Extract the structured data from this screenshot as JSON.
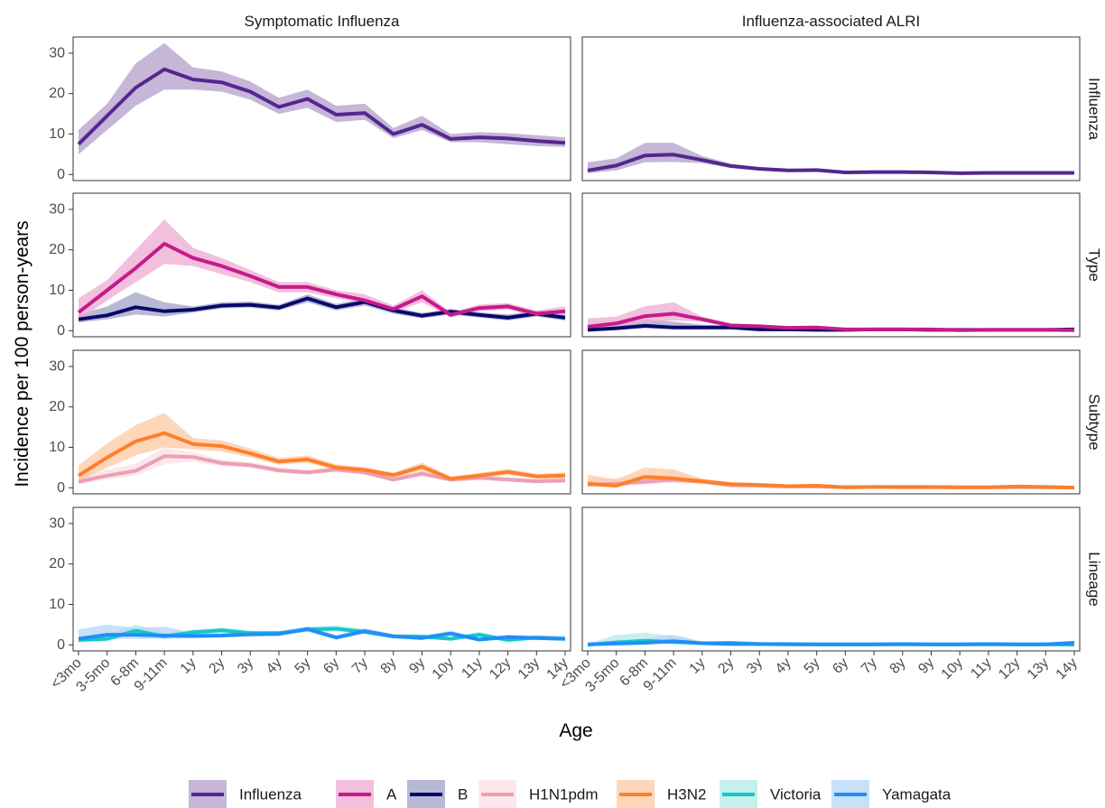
{
  "chart_data": {
    "type": "line",
    "xlabel": "Age",
    "ylabel": "Incidence per 100 person-years",
    "x_ticks": [
      "<3mo",
      "3-5mo",
      "6-8m",
      "9-11m",
      "1y",
      "2y",
      "3y",
      "4y",
      "5y",
      "6y",
      "7y",
      "8y",
      "9y",
      "10y",
      "11y",
      "12y",
      "13y",
      "14y"
    ],
    "y_ticks": [
      0,
      10,
      20,
      30
    ],
    "ylim": [
      -1.5,
      34
    ],
    "grid": false,
    "legend_position": "bottom",
    "columns": [
      "Symptomatic Influenza",
      "Influenza-associated ALRI"
    ],
    "rows": [
      "Influenza",
      "Type",
      "Subtype",
      "Lineage"
    ],
    "legend": [
      {
        "key": "Influenza",
        "label": "Influenza",
        "color": "#54278f",
        "fill": "#b39dca"
      },
      {
        "key": "A",
        "label": "A",
        "color": "#c51b8a",
        "fill": "#eda9d1"
      },
      {
        "key": "B",
        "label": "B",
        "color": "#08086b",
        "fill": "#9fa2c9"
      },
      {
        "key": "H1N1pdm",
        "label": "H1N1pdm",
        "color": "#ec9fb3",
        "fill": "#fbe0e6"
      },
      {
        "key": "H3N2",
        "label": "H3N2",
        "color": "#fd7f2c",
        "fill": "#fdc8a3"
      },
      {
        "key": "Victoria",
        "label": "Victoria",
        "color": "#16c7c9",
        "fill": "#b0ece8"
      },
      {
        "key": "Yamagata",
        "label": "Yamagata",
        "color": "#1f8ff7",
        "fill": "#b5d5f7"
      }
    ],
    "panels": [
      {
        "row": "Influenza",
        "col": "Symptomatic Influenza",
        "series": [
          {
            "key": "Influenza",
            "values": [
              7.5,
              14.5,
              21.5,
              26,
              23.5,
              22.8,
              20.5,
              16.7,
              18.7,
              14.8,
              15.2,
              10,
              12.3,
              8.8,
              9.2,
              8.9,
              8.3,
              7.8
            ],
            "lower": [
              5,
              11,
              17,
              21,
              21,
              20.5,
              18.5,
              15,
              16.5,
              13,
              13.5,
              9,
              11,
              8,
              8,
              7.5,
              7,
              6.8
            ],
            "upper": [
              11,
              17.5,
              27.5,
              32.5,
              26.5,
              25.5,
              23,
              19,
              21,
              17,
              17.5,
              11.5,
              14.5,
              10,
              10.5,
              10.2,
              9.7,
              9.2
            ]
          }
        ]
      },
      {
        "row": "Influenza",
        "col": "Influenza-associated ALRI",
        "series": [
          {
            "key": "Influenza",
            "values": [
              1,
              2.2,
              4.7,
              4.9,
              3.6,
              2.1,
              1.4,
              1,
              1.1,
              0.5,
              0.6,
              0.6,
              0.5,
              0.3,
              0.4,
              0.4,
              0.4,
              0.4
            ],
            "lower": [
              0.3,
              1,
              3,
              3.1,
              2.8,
              1.6,
              1,
              0.7,
              0.8,
              0.3,
              0.4,
              0.4,
              0.3,
              0.2,
              0.2,
              0.2,
              0.2,
              0.2
            ],
            "upper": [
              3,
              4,
              7.8,
              7.8,
              4.6,
              2.7,
              1.8,
              1.4,
              1.5,
              0.8,
              0.9,
              0.9,
              0.8,
              0.5,
              0.6,
              0.6,
              0.6,
              0.6
            ]
          }
        ]
      },
      {
        "row": "Type",
        "col": "Symptomatic Influenza",
        "series": [
          {
            "key": "B",
            "values": [
              2.8,
              3.8,
              5.8,
              4.8,
              5.2,
              6.2,
              6.4,
              5.7,
              8,
              5.8,
              7.1,
              5,
              3.7,
              4.7,
              3.9,
              3.2,
              4.2,
              3.2
            ],
            "lower": [
              2,
              2.8,
              4,
              3.5,
              4.5,
              5.5,
              5.7,
              5,
              7,
              5,
              6.2,
              4.2,
              3,
              4,
              3.2,
              2.5,
              3.5,
              2.5
            ],
            "upper": [
              4,
              6,
              9.5,
              7,
              6,
              7,
              7.2,
              6.4,
              9,
              6.6,
              8,
              5.8,
              4.4,
              5.4,
              4.6,
              4,
              5,
              4
            ]
          },
          {
            "key": "A",
            "values": [
              4.5,
              10,
              15.5,
              21.5,
              18,
              16,
              13.5,
              10.8,
              10.8,
              9,
              7.5,
              5.3,
              8.5,
              3.9,
              5.6,
              6,
              4.2,
              4.8
            ],
            "lower": [
              2.5,
              7.5,
              12,
              16.5,
              16,
              14,
              12,
              9.5,
              9.5,
              8,
              6.8,
              4.5,
              7,
              3.3,
              4.8,
              5.2,
              3.5,
              4
            ],
            "upper": [
              8,
              12.5,
              20,
              27.5,
              20.5,
              18,
              15,
              12,
              12,
              10,
              9,
              6.2,
              10,
              4.5,
              6.5,
              6.8,
              5,
              6
            ]
          }
        ]
      },
      {
        "row": "Type",
        "col": "Influenza-associated ALRI",
        "series": [
          {
            "key": "B",
            "values": [
              0.2,
              0.6,
              1.2,
              0.8,
              0.8,
              0.8,
              0.3,
              0.3,
              0.2,
              0.2,
              0.3,
              0.3,
              0.2,
              0.2,
              0.2,
              0.2,
              0.2,
              0.3
            ],
            "lower": [
              0,
              0.2,
              0.6,
              0.4,
              0.4,
              0.5,
              0.1,
              0.1,
              0.05,
              0.05,
              0.1,
              0.1,
              0.05,
              0.05,
              0.05,
              0.05,
              0.05,
              0.1
            ],
            "upper": [
              0.8,
              1.5,
              2.8,
              2.2,
              1.5,
              1.2,
              0.6,
              0.6,
              0.4,
              0.4,
              0.5,
              0.5,
              0.4,
              0.4,
              0.4,
              0.4,
              0.4,
              0.6
            ]
          },
          {
            "key": "A",
            "values": [
              1,
              1.8,
              3.6,
              4.2,
              2.8,
              1.3,
              1.1,
              0.7,
              0.8,
              0.3,
              0.3,
              0.3,
              0.3,
              0.1,
              0.2,
              0.2,
              0.2,
              0.1
            ],
            "lower": [
              0.3,
              0.8,
              2,
              2.5,
              2.2,
              0.9,
              0.7,
              0.4,
              0.5,
              0.15,
              0.15,
              0.15,
              0.15,
              0.05,
              0.1,
              0.1,
              0.1,
              0.05
            ],
            "upper": [
              3,
              3.5,
              6,
              7,
              3.5,
              1.8,
              1.5,
              1,
              1.1,
              0.5,
              0.5,
              0.5,
              0.5,
              0.3,
              0.4,
              0.4,
              0.4,
              0.3
            ]
          }
        ]
      },
      {
        "row": "Subtype",
        "col": "Symptomatic Influenza",
        "series": [
          {
            "key": "H1N1pdm",
            "values": [
              1.5,
              3,
              4.2,
              7.8,
              7.6,
              6.1,
              5.6,
              4.3,
              3.8,
              4.5,
              3.8,
              2,
              3.5,
              2,
              2.5,
              2,
              1.6,
              1.8
            ],
            "lower": [
              0.8,
              2,
              3,
              5.8,
              6.5,
              5.3,
              4.9,
              3.7,
              3.2,
              3.9,
              3.2,
              1.5,
              2.8,
              1.5,
              1.9,
              1.5,
              1.1,
              1.2
            ],
            "upper": [
              2.5,
              4.5,
              6,
              10,
              8.8,
              7,
              6.4,
              5,
              4.5,
              5.2,
              4.5,
              2.6,
              4.3,
              2.6,
              3.2,
              2.6,
              2.2,
              2.5
            ]
          },
          {
            "key": "H3N2",
            "values": [
              3,
              7.5,
              11.5,
              13.5,
              10.8,
              10.3,
              8.5,
              6.5,
              7,
              5,
              4.4,
              3.1,
              5.2,
              2.2,
              3,
              3.9,
              2.8,
              3
            ],
            "lower": [
              1.5,
              5,
              8,
              10,
              9.5,
              9,
              7.5,
              5.7,
              6.2,
              4.3,
              3.8,
              2.5,
              4.3,
              1.7,
              2.4,
              3.2,
              2.2,
              2.3
            ],
            "upper": [
              5.5,
              11,
              15.5,
              18.5,
              12.3,
              11.7,
              9.7,
              7.4,
              8,
              5.8,
              5.1,
              3.8,
              6.2,
              2.8,
              3.7,
              4.7,
              3.5,
              3.8
            ]
          }
        ]
      },
      {
        "row": "Subtype",
        "col": "Influenza-associated ALRI",
        "series": [
          {
            "key": "H1N1pdm",
            "values": [
              0.8,
              1,
              1.5,
              2,
              1.5,
              0.6,
              0.5,
              0.3,
              0.3,
              0.1,
              0.2,
              0.1,
              0.1,
              0.1,
              0.1,
              0.1,
              0.1,
              0.05
            ],
            "lower": [
              0.2,
              0.4,
              0.8,
              1.2,
              1,
              0.3,
              0.25,
              0.1,
              0.1,
              0.03,
              0.05,
              0.03,
              0.03,
              0.03,
              0.03,
              0.03,
              0.03,
              0.01
            ],
            "upper": [
              2,
              2.5,
              3,
              3.5,
              2.2,
              1,
              0.8,
              0.5,
              0.5,
              0.25,
              0.35,
              0.25,
              0.25,
              0.25,
              0.25,
              0.25,
              0.25,
              0.15
            ]
          },
          {
            "key": "H3N2",
            "values": [
              1,
              0.5,
              2.7,
              2.3,
              1.6,
              0.9,
              0.7,
              0.4,
              0.5,
              0.1,
              0.2,
              0.2,
              0.2,
              0.1,
              0.1,
              0.3,
              0.2,
              0.05
            ],
            "lower": [
              0.3,
              0.1,
              1.5,
              1.4,
              1.1,
              0.6,
              0.4,
              0.2,
              0.3,
              0.03,
              0.05,
              0.05,
              0.05,
              0.03,
              0.03,
              0.1,
              0.05,
              0.01
            ],
            "upper": [
              3.2,
              2,
              5,
              4.5,
              2.3,
              1.3,
              1,
              0.7,
              0.8,
              0.3,
              0.4,
              0.4,
              0.4,
              0.3,
              0.3,
              0.5,
              0.4,
              0.2
            ]
          }
        ]
      },
      {
        "row": "Lineage",
        "col": "Symptomatic Influenza",
        "series": [
          {
            "key": "Victoria",
            "values": [
              1.2,
              1.5,
              3.5,
              2.1,
              3.1,
              3.6,
              2.9,
              2.9,
              3.8,
              4,
              3.2,
              2.1,
              2,
              1.5,
              2.5,
              1.2,
              1.8,
              1.5
            ],
            "lower": [
              0.6,
              0.9,
              2.5,
              1.4,
              2.5,
              3,
              2.4,
              2.4,
              3.2,
              3.3,
              2.6,
              1.6,
              1.5,
              1.1,
              1.9,
              0.8,
              1.3,
              1
            ],
            "upper": [
              2,
              2.5,
              5,
              3,
              3.8,
              4.3,
              3.5,
              3.5,
              4.5,
              4.8,
              3.9,
              2.7,
              2.6,
              2,
              3.2,
              1.7,
              2.4,
              2.1
            ]
          },
          {
            "key": "Yamagata",
            "values": [
              1.5,
              2.5,
              2.5,
              2.3,
              2.2,
              2.3,
              2.6,
              2.7,
              3.9,
              1.8,
              3.4,
              2.1,
              1.7,
              2.8,
              1.3,
              1.9,
              1.7,
              1.5
            ],
            "lower": [
              0.7,
              1.5,
              1.5,
              1.5,
              1.6,
              1.8,
              2.1,
              2.2,
              3.3,
              1.3,
              2.8,
              1.6,
              1.2,
              2.2,
              0.9,
              1.4,
              1.2,
              1
            ],
            "upper": [
              3.8,
              5,
              4.2,
              4.5,
              2.9,
              2.9,
              3.2,
              3.3,
              4.6,
              2.4,
              4.1,
              2.7,
              2.3,
              3.5,
              1.8,
              2.5,
              2.3,
              2.2
            ]
          }
        ]
      },
      {
        "row": "Lineage",
        "col": "Influenza-associated ALRI",
        "series": [
          {
            "key": "Victoria",
            "values": [
              0,
              0.6,
              1,
              0.7,
              0.4,
              0.5,
              0.2,
              0.2,
              0.1,
              0.1,
              0.1,
              0.1,
              0.1,
              0.1,
              0.1,
              0.1,
              0.1,
              0.05
            ],
            "lower": [
              0,
              0.1,
              0.3,
              0.2,
              0.2,
              0.25,
              0.05,
              0.05,
              0.02,
              0.02,
              0.02,
              0.02,
              0.02,
              0.02,
              0.02,
              0.02,
              0.02,
              0.01
            ],
            "upper": [
              0.3,
              2.5,
              3,
              2.2,
              0.8,
              0.9,
              0.4,
              0.4,
              0.25,
              0.25,
              0.25,
              0.25,
              0.25,
              0.25,
              0.25,
              0.25,
              0.25,
              0.15
            ]
          },
          {
            "key": "Yamagata",
            "values": [
              0.1,
              0.3,
              0.5,
              0.9,
              0.4,
              0.2,
              0.2,
              0.1,
              0.1,
              0.1,
              0.1,
              0.2,
              0.1,
              0.1,
              0.2,
              0.1,
              0.1,
              0.5
            ],
            "lower": [
              0.02,
              0.1,
              0.2,
              0.4,
              0.2,
              0.05,
              0.05,
              0.02,
              0.02,
              0.02,
              0.02,
              0.05,
              0.02,
              0.02,
              0.05,
              0.02,
              0.02,
              0.25
            ],
            "upper": [
              0.5,
              1.2,
              1.5,
              2.5,
              0.8,
              0.5,
              0.5,
              0.3,
              0.3,
              0.3,
              0.3,
              0.5,
              0.3,
              0.3,
              0.5,
              0.3,
              0.3,
              1
            ]
          }
        ]
      }
    ]
  }
}
